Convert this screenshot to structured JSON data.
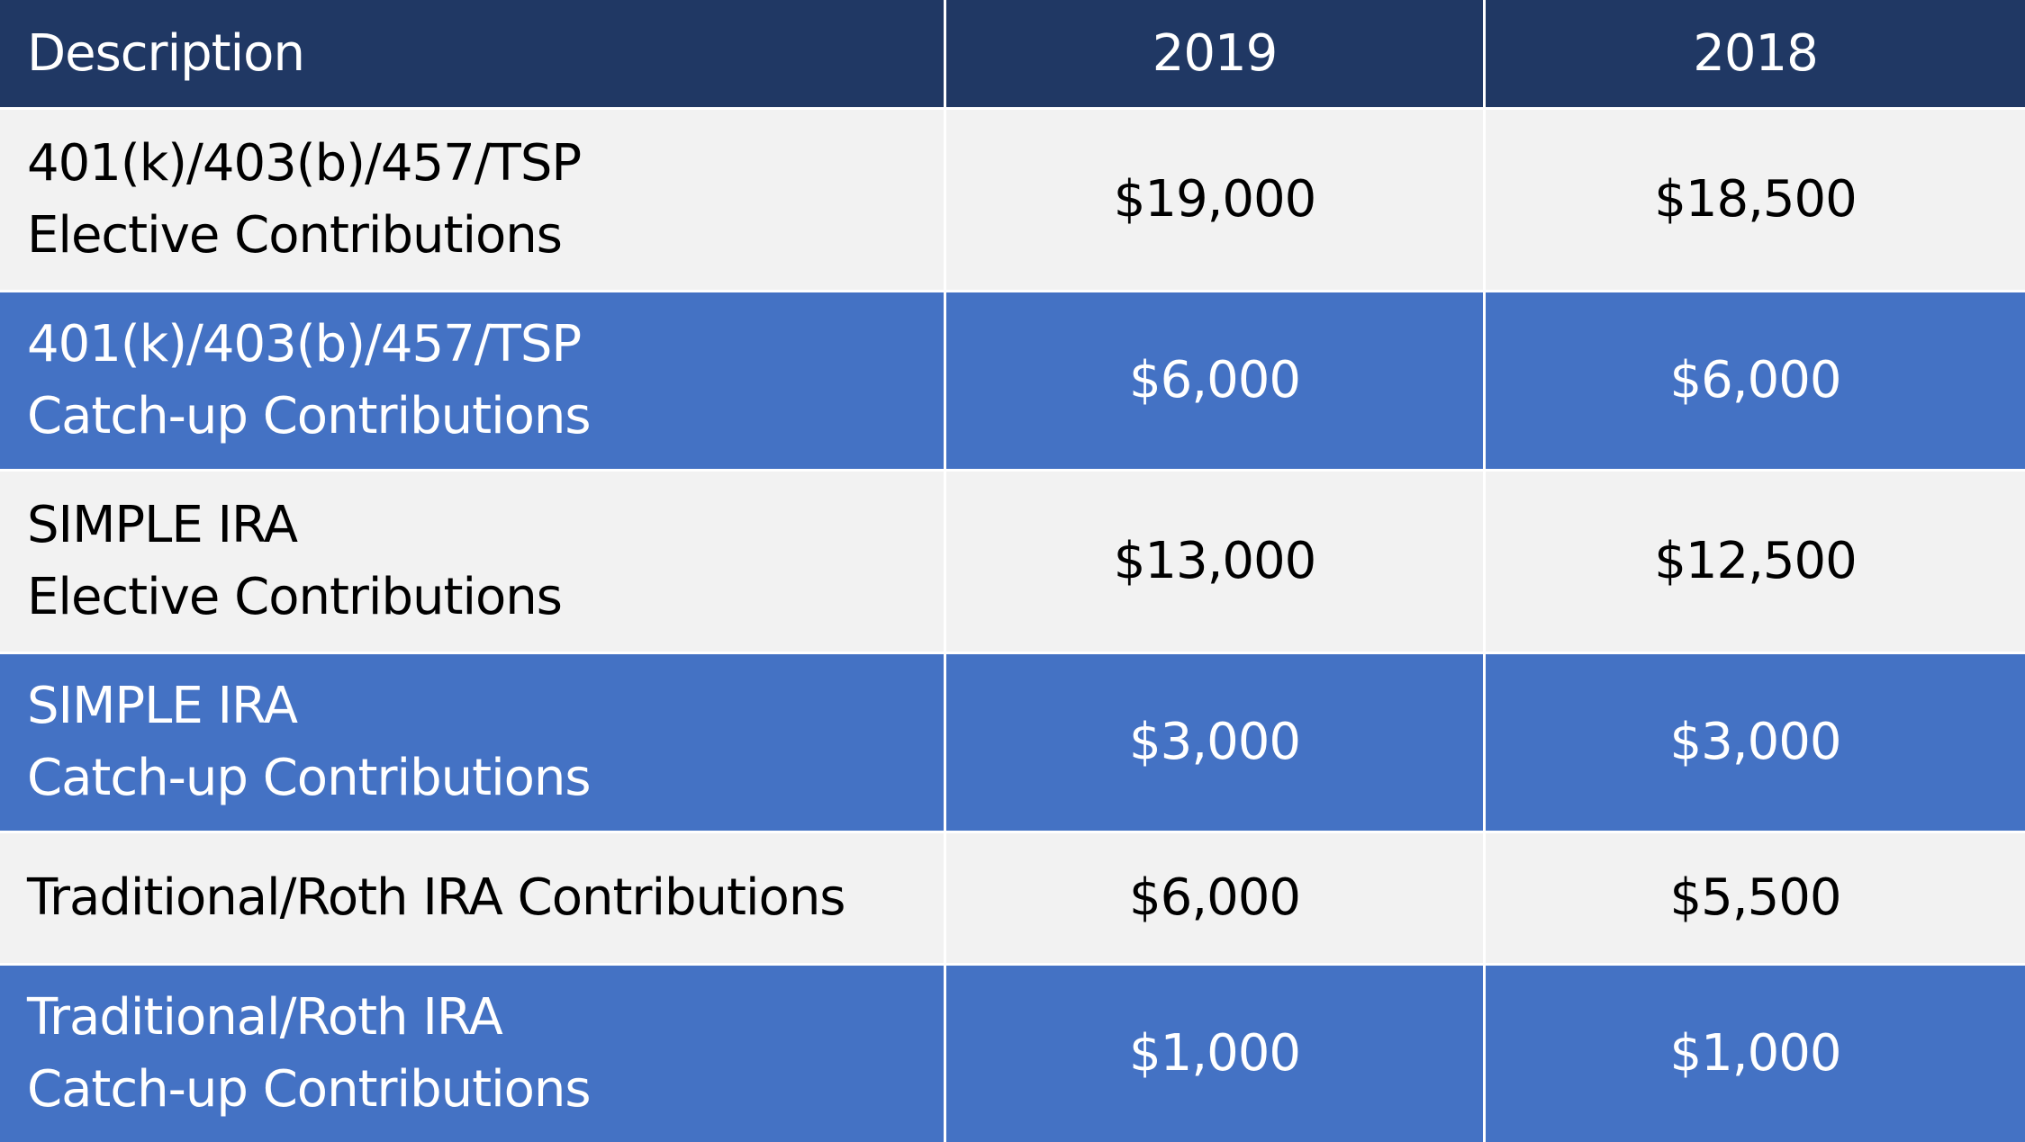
{
  "table": {
    "headers": [
      "Description",
      "2019",
      "2018"
    ],
    "rows": [
      {
        "desc_line1": "401(k)/403(b)/457/TSP",
        "desc_line2": "Elective Contributions",
        "y2019": "$19,000",
        "y2018": "$18,500"
      },
      {
        "desc_line1": "401(k)/403(b)/457/TSP",
        "desc_line2": "Catch-up Contributions",
        "y2019": "$6,000",
        "y2018": "$6,000"
      },
      {
        "desc_line1": "SIMPLE IRA",
        "desc_line2": "Elective Contributions",
        "y2019": "$13,000",
        "y2018": "$12,500"
      },
      {
        "desc_line1": "SIMPLE IRA",
        "desc_line2": "Catch-up Contributions",
        "y2019": "$3,000",
        "y2018": "$3,000"
      },
      {
        "desc_line1": "Traditional/Roth IRA Contributions",
        "desc_line2": "",
        "y2019": "$6,000",
        "y2018": "$5,500"
      },
      {
        "desc_line1": "Traditional/Roth IRA",
        "desc_line2": "Catch-up Contributions",
        "y2019": "$1,000",
        "y2018": "$1,000"
      }
    ]
  },
  "colors": {
    "header_bg": "#203864",
    "light_row_bg": "#f2f2f2",
    "blue_row_bg": "#4472c4"
  }
}
